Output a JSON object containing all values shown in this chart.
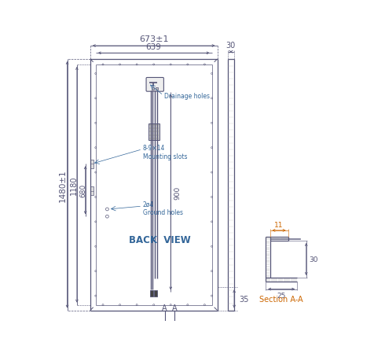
{
  "bg_color": "#ffffff",
  "line_color": "#555577",
  "dim_color": "#555577",
  "orange_color": "#cc6600",
  "blue_label_color": "#336699",
  "title_top_dim": "673±1",
  "inner_width_dim": "639",
  "height_dim": "1480±1",
  "height_1180": "1180",
  "height_680": "680",
  "dim_35": "35",
  "dim_30_right": "30",
  "dim_900": "900",
  "label_back_view": "BACK  VIEW",
  "label_drainage": "Drainage holes",
  "label_mounting": "8-9×14\nMounting slots",
  "label_ground": "2ø4\nGround holes",
  "section_label": "Section A-A",
  "dim_11": "11",
  "dim_30_section": "30",
  "dim_25": "25",
  "A_label": "A",
  "figsize": [
    4.9,
    4.6
  ],
  "dpi": 100
}
